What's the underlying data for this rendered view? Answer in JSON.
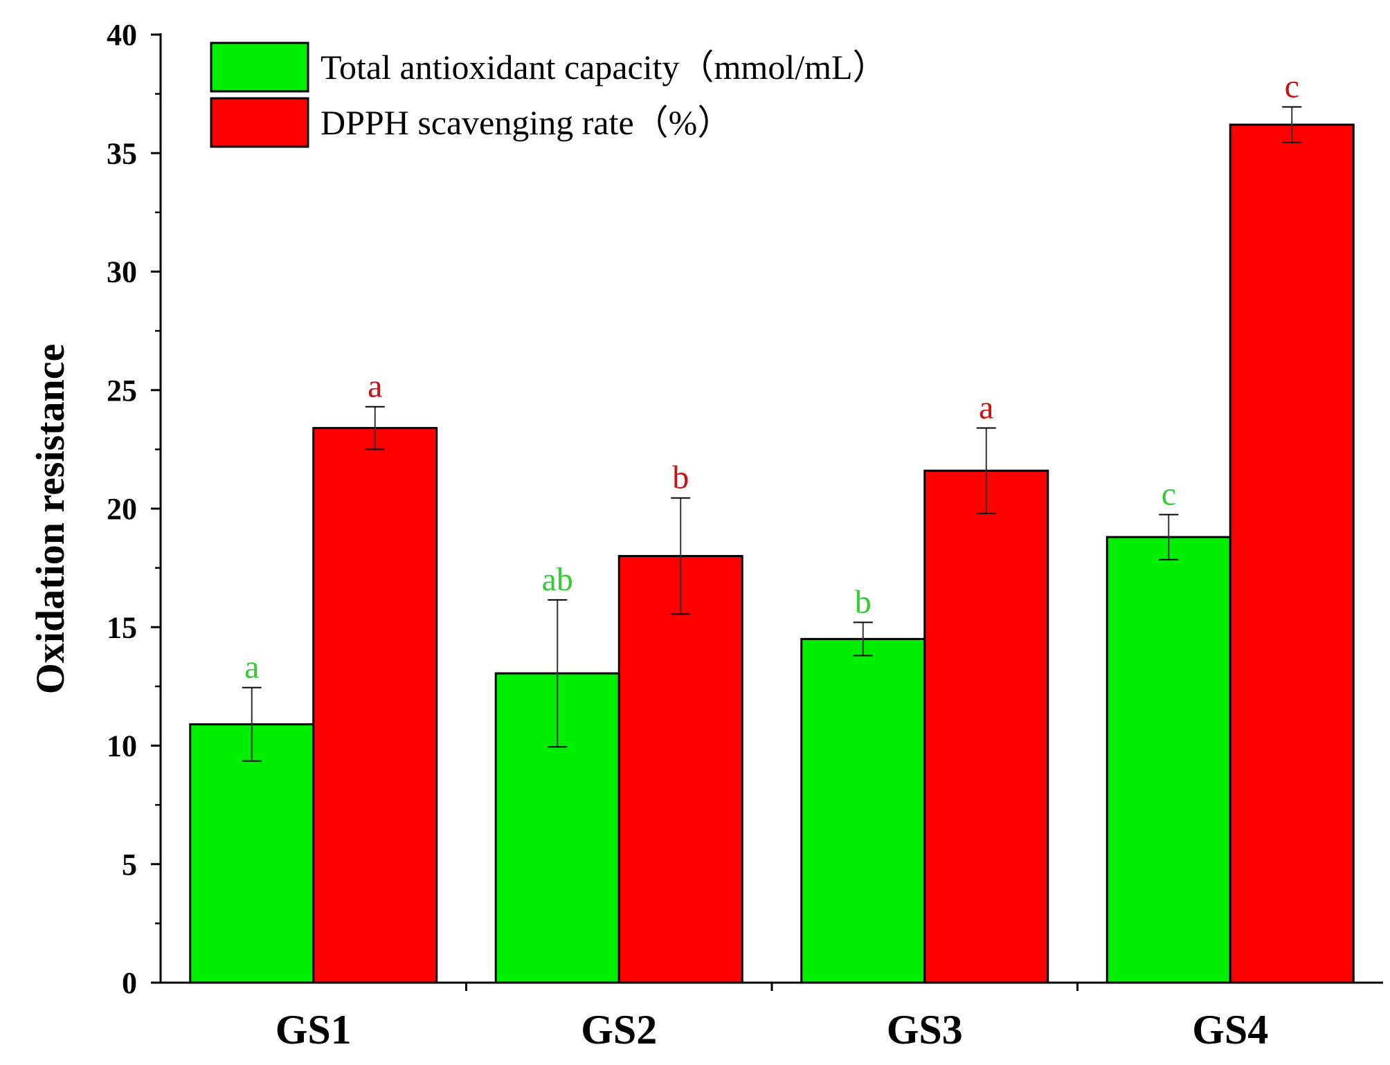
{
  "chart_data": {
    "type": "bar",
    "title": "",
    "xlabel": "",
    "ylabel": "Oxidation resistance",
    "ylim": [
      0,
      40
    ],
    "yticks": [
      0,
      5,
      10,
      15,
      20,
      25,
      30,
      35,
      40
    ],
    "categories": [
      "GS1",
      "GS2",
      "GS3",
      "GS4"
    ],
    "legend_position": "top-left",
    "series": [
      {
        "name": "Total antioxidant capacity（mmol/mL）",
        "color": "#00ee00",
        "label_color": "#33cc33",
        "values": [
          10.9,
          13.05,
          14.5,
          18.8
        ],
        "errors": [
          1.55,
          3.1,
          0.7,
          0.95
        ],
        "significance": [
          "a",
          "ab",
          "b",
          "c"
        ]
      },
      {
        "name": "DPPH scavenging rate（%）",
        "color": "#ff0000",
        "label_color": "#cc1111",
        "values": [
          23.4,
          18.0,
          21.6,
          36.2
        ],
        "errors": [
          0.9,
          2.45,
          1.8,
          0.75
        ],
        "significance": [
          "a",
          "b",
          "a",
          "c"
        ]
      }
    ]
  }
}
